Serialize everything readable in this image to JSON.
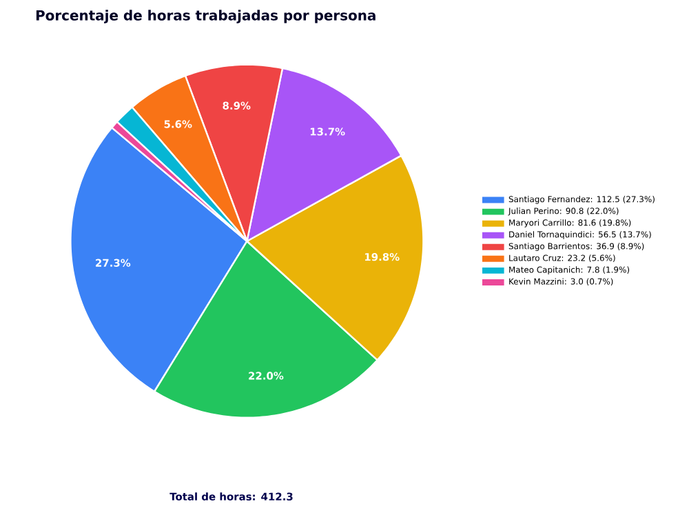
{
  "chart_data": {
    "type": "pie",
    "title": "Porcentaje de horas trabajadas por persona",
    "categories": [
      "Santiago Fernandez: 112.5 (27.3%)",
      "Julian Perino: 90.8 (22.0%)",
      "Maryori Carrillo: 81.6 (19.8%)",
      "Daniel Tornaquindici: 56.5 (13.7%)",
      "Santiago Barrientos: 36.9 (8.9%)",
      "Lautaro Cruz: 23.2 (5.6%)",
      "Mateo Capitanich: 7.8 (1.9%)",
      "Kevin Mazzini: 3.0 (0.7%)"
    ],
    "values": [
      27.3,
      22.0,
      19.8,
      13.7,
      8.9,
      5.6,
      1.9,
      0.7
    ],
    "colors": [
      "#3b82f6",
      "#22c55e",
      "#eab308",
      "#a855f7",
      "#ef4444",
      "#f97316",
      "#06b6d4",
      "#ec4899"
    ],
    "value_labels": [
      "27.3%",
      "22.0%",
      "19.8%",
      "13.7%",
      "8.9%",
      "5.6%",
      null,
      null
    ],
    "legend": "right",
    "annotations": [
      "Total de horas: 412.3"
    ]
  }
}
